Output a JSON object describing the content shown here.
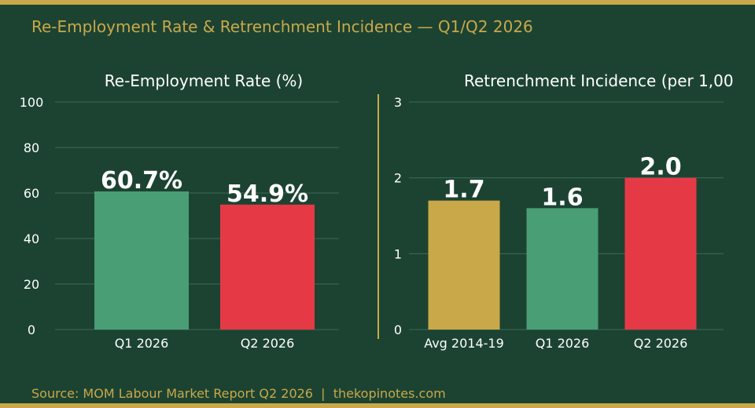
{
  "header": {
    "title": "Re-Employment Rate & Retrenchment Incidence — Q1/Q2 2026"
  },
  "footer": {
    "source": "Source: MOM Labour Market Report Q2 2026  |  thekopinotes.com"
  },
  "colors": {
    "background": "#1c4332",
    "gold": "#c9a84a",
    "green": "#4a9e75",
    "red": "#e63946",
    "grid": "#3d6a55",
    "text": "#ffffff"
  },
  "chart_data": [
    {
      "type": "bar",
      "title": "Re-Employment Rate (%)",
      "categories": [
        "Q1 2026",
        "Q2 2026"
      ],
      "values": [
        60.7,
        54.9
      ],
      "value_labels": [
        "60.7%",
        "54.9%"
      ],
      "bar_colors": [
        "#4a9e75",
        "#e63946"
      ],
      "ylim": [
        0,
        100
      ],
      "yticks": [
        0,
        20,
        40,
        60,
        80,
        100
      ],
      "ytick_labels": [
        "0",
        "20",
        "40",
        "60",
        "80",
        "100"
      ],
      "grid": true
    },
    {
      "type": "bar",
      "title": "Retrenchment Incidence (per 1,00",
      "categories": [
        "Avg 2014-19",
        "Q1 2026",
        "Q2 2026"
      ],
      "values": [
        1.7,
        1.6,
        2.0
      ],
      "value_labels": [
        "1.7",
        "1.6",
        "2.0"
      ],
      "bar_colors": [
        "#c9a84a",
        "#4a9e75",
        "#e63946"
      ],
      "ylim": [
        0,
        3
      ],
      "yticks": [
        0,
        1,
        2,
        3
      ],
      "ytick_labels": [
        "0",
        "1",
        "2",
        "3"
      ],
      "grid": true
    }
  ]
}
